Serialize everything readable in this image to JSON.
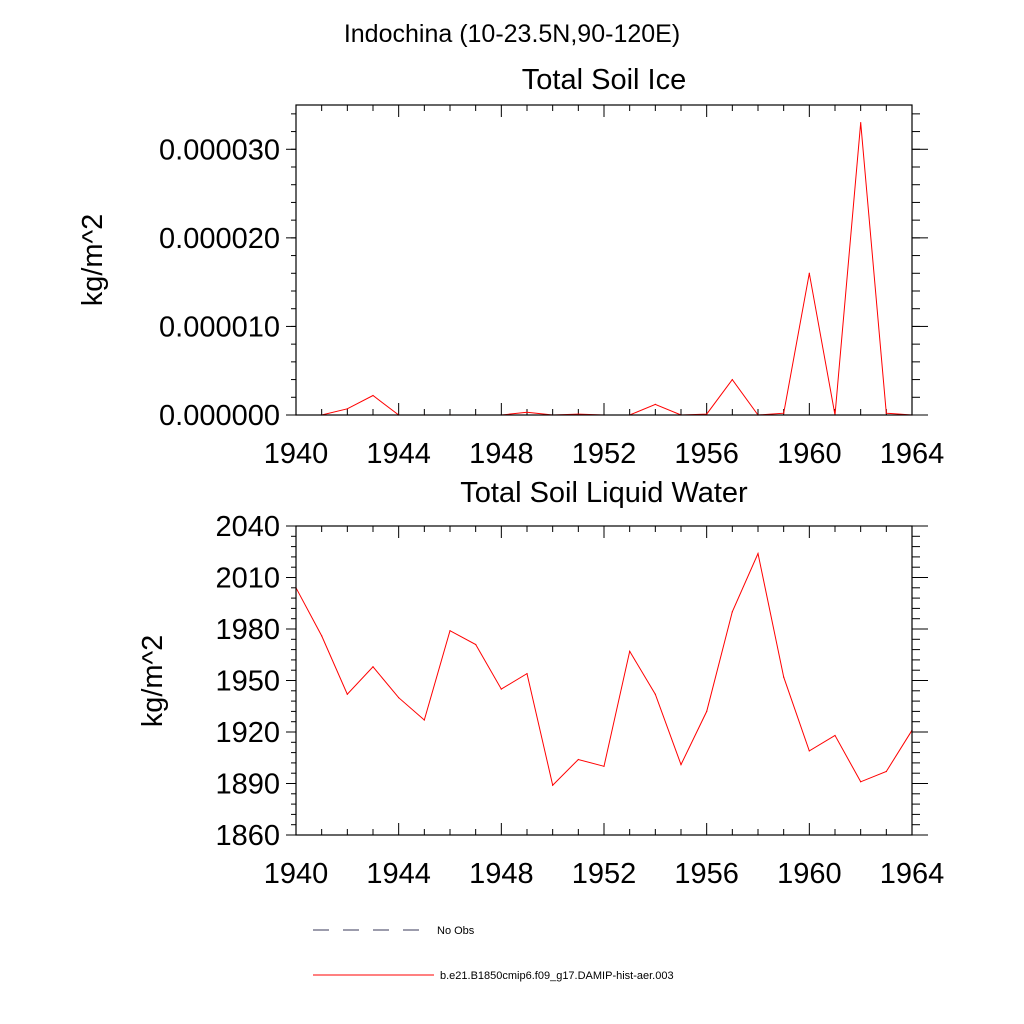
{
  "figure": {
    "main_title": "Indochina (10-23.5N,90-120E)"
  },
  "legend": {
    "position": "bottom",
    "items": [
      {
        "label": "No Obs",
        "style": "dashed",
        "color": "#3a3a5a"
      },
      {
        "label": "b.e21.B1850cmip6.f09_g17.DAMIP-hist-aer.003",
        "style": "solid",
        "color": "#ff0000"
      }
    ]
  },
  "chart_data": [
    {
      "type": "line",
      "title": "Total Soil Ice",
      "xlabel": "",
      "ylabel": "kg/m^2",
      "xlim": [
        1940,
        1964
      ],
      "ylim": [
        0,
        3.5e-05
      ],
      "xticks": [
        1940,
        1944,
        1948,
        1952,
        1956,
        1960,
        1964
      ],
      "xtick_labels": [
        "1940",
        "1944",
        "1948",
        "1952",
        "1956",
        "1960",
        "1964"
      ],
      "yticks": [
        0,
        1e-05,
        2e-05,
        3e-05
      ],
      "ytick_labels": [
        "0.000000",
        "0.000010",
        "0.000020",
        "0.000030"
      ],
      "grid": false,
      "series": [
        {
          "color": "#ff0000",
          "x": [
            1940,
            1941,
            1942,
            1943,
            1944,
            1945,
            1946,
            1947,
            1948,
            1949,
            1950,
            1951,
            1952,
            1953,
            1954,
            1955,
            1956,
            1957,
            1958,
            1959,
            1960,
            1961,
            1962,
            1963,
            1964
          ],
          "y": [
            0,
            0,
            7e-07,
            2.2e-06,
            0,
            0,
            0,
            0,
            0,
            3e-07,
            0,
            1e-07,
            0,
            0,
            1.2e-06,
            0,
            1e-07,
            4e-06,
            0,
            2e-07,
            1.6e-05,
            0,
            3.3e-05,
            2e-07,
            0
          ]
        }
      ]
    },
    {
      "type": "line",
      "title": "Total Soil Liquid Water",
      "xlabel": "",
      "ylabel": "kg/m^2",
      "xlim": [
        1940,
        1964
      ],
      "ylim": [
        1860,
        2040
      ],
      "xticks": [
        1940,
        1944,
        1948,
        1952,
        1956,
        1960,
        1964
      ],
      "xtick_labels": [
        "1940",
        "1944",
        "1948",
        "1952",
        "1956",
        "1960",
        "1964"
      ],
      "yticks": [
        1860,
        1890,
        1920,
        1950,
        1980,
        2010,
        2040
      ],
      "ytick_labels": [
        "1860",
        "1890",
        "1920",
        "1950",
        "1980",
        "2010",
        "2040"
      ],
      "grid": false,
      "series": [
        {
          "color": "#ff0000",
          "x": [
            1940,
            1941,
            1942,
            1943,
            1944,
            1945,
            1946,
            1947,
            1948,
            1949,
            1950,
            1951,
            1952,
            1953,
            1954,
            1955,
            1956,
            1957,
            1958,
            1959,
            1960,
            1961,
            1962,
            1963,
            1964
          ],
          "y": [
            2004,
            1976,
            1942,
            1958,
            1940,
            1927,
            1979,
            1971,
            1945,
            1954,
            1889,
            1904,
            1900,
            1967,
            1942,
            1901,
            1932,
            1990,
            2024,
            1952,
            1909,
            1918,
            1891,
            1897,
            1921
          ]
        }
      ]
    }
  ]
}
